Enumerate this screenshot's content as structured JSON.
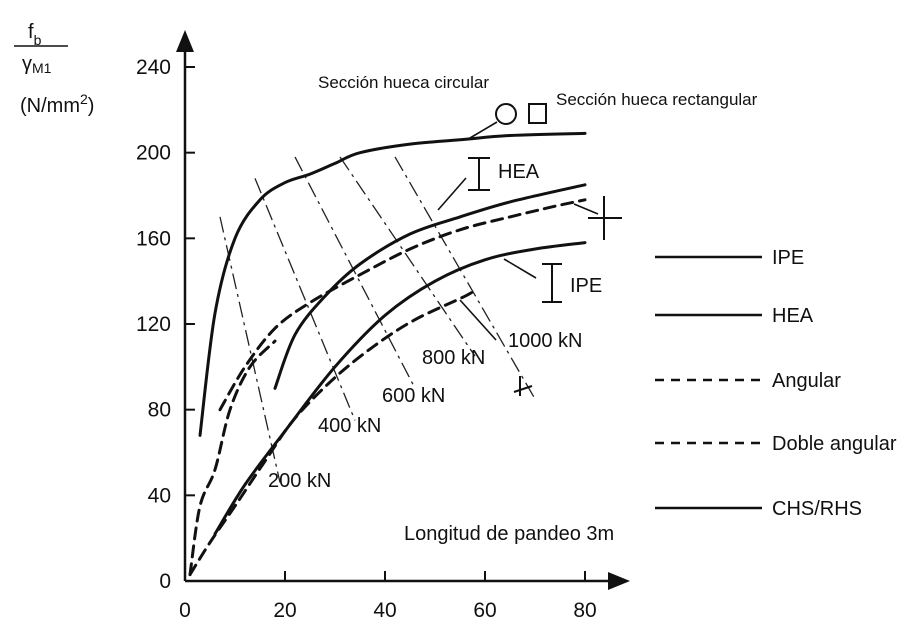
{
  "chart_data": {
    "type": "line",
    "title": "",
    "ylabel_numerator": "f",
    "ylabel_numerator_sub": "b",
    "ylabel_denominator": "γ",
    "ylabel_denominator_sub": "M1",
    "ylabel_unit_open": "(N/mm",
    "ylabel_unit_exp": "2",
    "ylabel_unit_close": ")",
    "xlabel": "Longitud de pandeo 3m",
    "xlim": [
      0,
      80
    ],
    "ylim": [
      0,
      240
    ],
    "x_ticks": [
      0,
      20,
      40,
      60,
      80
    ],
    "y_ticks": [
      0,
      40,
      80,
      120,
      160,
      200,
      240
    ],
    "grid": false,
    "legend_position": "right",
    "legend": [
      {
        "label": "IPE",
        "style": "solid"
      },
      {
        "label": "HEA",
        "style": "solid"
      },
      {
        "label": "Angular",
        "style": "dashed"
      },
      {
        "label": "Doble angular",
        "style": "dashed"
      },
      {
        "label": "CHS/RHS",
        "style": "solid"
      }
    ],
    "series": [
      {
        "label_ref": "Sección hueca circular / Sección hueca rectangular",
        "style": "solid",
        "points": [
          [
            3,
            68
          ],
          [
            6,
            125
          ],
          [
            10,
            160
          ],
          [
            15,
            178
          ],
          [
            20,
            186
          ],
          [
            25,
            190
          ],
          [
            30,
            195
          ],
          [
            35,
            200
          ],
          [
            45,
            204
          ],
          [
            55,
            206
          ],
          [
            65,
            208
          ],
          [
            80,
            209
          ]
        ]
      },
      {
        "label_ref": "HEA",
        "style": "solid",
        "points": [
          [
            18,
            90
          ],
          [
            22,
            115
          ],
          [
            28,
            133
          ],
          [
            35,
            148
          ],
          [
            45,
            162
          ],
          [
            55,
            170
          ],
          [
            65,
            177
          ],
          [
            80,
            185
          ]
        ]
      },
      {
        "label_ref": "Doble angular",
        "style": "dashed",
        "points": [
          [
            7,
            80
          ],
          [
            12,
            100
          ],
          [
            18,
            118
          ],
          [
            25,
            130
          ],
          [
            35,
            143
          ],
          [
            45,
            155
          ],
          [
            55,
            164
          ],
          [
            65,
            170
          ],
          [
            74,
            175
          ],
          [
            80,
            178
          ]
        ]
      },
      {
        "label_ref": "IPE",
        "style": "solid",
        "points": [
          [
            6,
            22
          ],
          [
            12,
            45
          ],
          [
            20,
            70
          ],
          [
            30,
            100
          ],
          [
            40,
            124
          ],
          [
            50,
            140
          ],
          [
            60,
            150
          ],
          [
            70,
            155
          ],
          [
            80,
            158
          ]
        ]
      },
      {
        "label_ref": "Angular",
        "style": "dashed",
        "points": [
          [
            1,
            3
          ],
          [
            3,
            35
          ],
          [
            6,
            52
          ],
          [
            9,
            80
          ],
          [
            13,
            100
          ],
          [
            18,
            112
          ]
        ]
      },
      {
        "label_ref": "Angular",
        "style": "dashed",
        "points": [
          [
            1,
            3
          ],
          [
            5,
            18
          ],
          [
            10,
            35
          ],
          [
            16,
            56
          ],
          [
            22,
            76
          ],
          [
            30,
            95
          ],
          [
            38,
            110
          ],
          [
            46,
            122
          ],
          [
            56,
            133
          ],
          [
            58,
            136
          ]
        ]
      }
    ],
    "force_lines": [
      {
        "label": "200 kN",
        "from": [
          7,
          170
        ],
        "to": [
          19,
          46
        ]
      },
      {
        "label": "400 kN",
        "from": [
          14,
          188
        ],
        "to": [
          34,
          75
        ]
      },
      {
        "label": "600 kN",
        "from": [
          22,
          198
        ],
        "to": [
          46,
          90
        ]
      },
      {
        "label": "800 kN",
        "from": [
          31,
          198
        ],
        "to": [
          58,
          105
        ]
      },
      {
        "label": "1000 kN",
        "from": [
          42,
          198
        ],
        "to": [
          70,
          85
        ]
      }
    ],
    "annotations": [
      {
        "text": "Sección hueca circular"
      },
      {
        "text": "Sección hueca rectangular"
      },
      {
        "text": "HEA"
      },
      {
        "text": "IPE"
      }
    ]
  }
}
